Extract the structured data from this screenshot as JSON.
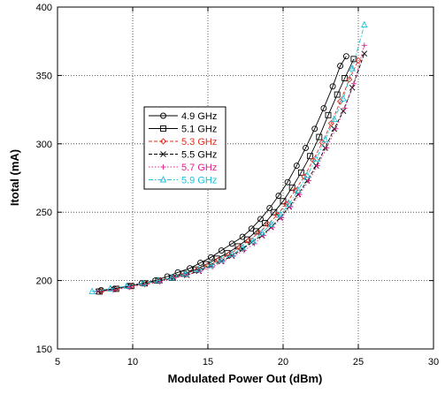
{
  "chart_data": {
    "type": "line",
    "title": "",
    "xlabel": "Modulated Power Out (dBm)",
    "ylabel": "Itotal (mA)",
    "xlim": [
      5,
      30
    ],
    "ylim": [
      150,
      400
    ],
    "xticks": [
      5,
      10,
      15,
      20,
      25,
      30
    ],
    "yticks": [
      150,
      200,
      250,
      300,
      350,
      400
    ],
    "xtick_labels": [
      "5",
      "10",
      "15",
      "20",
      "25",
      "30"
    ],
    "ytick_labels": [
      "150",
      "200",
      "250",
      "300",
      "350",
      "400"
    ],
    "grid": true,
    "legend_position": "center-left",
    "series": [
      {
        "name": "4.9 GHz",
        "color": "#000000",
        "marker": "circle",
        "dash": "solid",
        "points": [
          [
            7.9,
            193
          ],
          [
            8.8,
            194
          ],
          [
            9.7,
            196
          ],
          [
            10.6,
            198
          ],
          [
            11.5,
            200
          ],
          [
            12.3,
            203
          ],
          [
            13.0,
            206
          ],
          [
            13.8,
            209
          ],
          [
            14.5,
            213
          ],
          [
            15.2,
            217
          ],
          [
            15.9,
            222
          ],
          [
            16.6,
            227
          ],
          [
            17.3,
            232
          ],
          [
            17.9,
            238
          ],
          [
            18.5,
            245
          ],
          [
            19.1,
            253
          ],
          [
            19.7,
            262
          ],
          [
            20.3,
            272
          ],
          [
            20.9,
            284
          ],
          [
            21.5,
            297
          ],
          [
            22.1,
            311
          ],
          [
            22.7,
            326
          ],
          [
            23.3,
            342
          ],
          [
            23.8,
            357
          ],
          [
            24.2,
            364
          ]
        ]
      },
      {
        "name": "5.1 GHz",
        "color": "#000000",
        "marker": "square",
        "dash": "solid",
        "points": [
          [
            7.8,
            192
          ],
          [
            8.9,
            194
          ],
          [
            9.9,
            196
          ],
          [
            10.8,
            198
          ],
          [
            11.7,
            200
          ],
          [
            12.6,
            202
          ],
          [
            13.4,
            205
          ],
          [
            14.2,
            208
          ],
          [
            14.9,
            212
          ],
          [
            15.6,
            216
          ],
          [
            16.3,
            220
          ],
          [
            17.0,
            225
          ],
          [
            17.6,
            230
          ],
          [
            18.2,
            236
          ],
          [
            18.8,
            242
          ],
          [
            19.4,
            250
          ],
          [
            20.0,
            258
          ],
          [
            20.6,
            268
          ],
          [
            21.2,
            279
          ],
          [
            21.8,
            291
          ],
          [
            22.4,
            305
          ],
          [
            23.0,
            321
          ],
          [
            23.6,
            336
          ],
          [
            24.1,
            348
          ],
          [
            24.7,
            362
          ]
        ]
      },
      {
        "name": "5.3 GHz",
        "color": "#e03020",
        "marker": "diamond",
        "dash": "dash",
        "points": [
          [
            7.9,
            192
          ],
          [
            8.9,
            194
          ],
          [
            9.9,
            196
          ],
          [
            10.9,
            198
          ],
          [
            11.8,
            200
          ],
          [
            12.7,
            202
          ],
          [
            13.5,
            205
          ],
          [
            14.3,
            208
          ],
          [
            15.0,
            211
          ],
          [
            15.7,
            215
          ],
          [
            16.4,
            219
          ],
          [
            17.1,
            224
          ],
          [
            17.7,
            229
          ],
          [
            18.4,
            235
          ],
          [
            19.0,
            241
          ],
          [
            19.6,
            248
          ],
          [
            20.2,
            256
          ],
          [
            20.8,
            266
          ],
          [
            21.4,
            276
          ],
          [
            22.0,
            288
          ],
          [
            22.6,
            301
          ],
          [
            23.2,
            315
          ],
          [
            23.8,
            331
          ],
          [
            24.4,
            347
          ],
          [
            25.0,
            361
          ]
        ]
      },
      {
        "name": "5.5 GHz",
        "color": "#000000",
        "marker": "x",
        "dash": "dash",
        "points": [
          [
            7.7,
            192
          ],
          [
            8.7,
            194
          ],
          [
            9.8,
            196
          ],
          [
            10.8,
            198
          ],
          [
            11.8,
            200
          ],
          [
            12.7,
            202
          ],
          [
            13.6,
            204
          ],
          [
            14.4,
            207
          ],
          [
            15.2,
            211
          ],
          [
            15.9,
            214
          ],
          [
            16.6,
            218
          ],
          [
            17.3,
            223
          ],
          [
            17.9,
            228
          ],
          [
            18.6,
            233
          ],
          [
            19.2,
            239
          ],
          [
            19.8,
            246
          ],
          [
            20.4,
            254
          ],
          [
            21.0,
            263
          ],
          [
            21.6,
            273
          ],
          [
            22.2,
            284
          ],
          [
            22.8,
            297
          ],
          [
            23.4,
            311
          ],
          [
            24.0,
            324
          ],
          [
            24.6,
            341
          ],
          [
            25.4,
            366
          ]
        ]
      },
      {
        "name": "5.7 GHz",
        "color": "#e0208a",
        "marker": "plus",
        "dash": "dot",
        "points": [
          [
            7.6,
            192
          ],
          [
            8.7,
            193
          ],
          [
            9.8,
            195
          ],
          [
            10.8,
            197
          ],
          [
            11.8,
            199
          ],
          [
            12.7,
            202
          ],
          [
            13.6,
            204
          ],
          [
            14.5,
            207
          ],
          [
            15.3,
            210
          ],
          [
            16.0,
            214
          ],
          [
            16.7,
            218
          ],
          [
            17.4,
            222
          ],
          [
            18.1,
            227
          ],
          [
            18.7,
            233
          ],
          [
            19.3,
            239
          ],
          [
            19.9,
            246
          ],
          [
            20.5,
            254
          ],
          [
            21.1,
            263
          ],
          [
            21.7,
            273
          ],
          [
            22.3,
            284
          ],
          [
            22.9,
            297
          ],
          [
            23.5,
            311
          ],
          [
            24.1,
            326
          ],
          [
            24.7,
            344
          ],
          [
            25.4,
            372
          ]
        ]
      },
      {
        "name": "5.9 GHz",
        "color": "#20c0d8",
        "marker": "triangle",
        "dash": "dashdot",
        "points": [
          [
            7.3,
            192
          ],
          [
            8.5,
            194
          ],
          [
            9.6,
            196
          ],
          [
            10.7,
            198
          ],
          [
            11.7,
            200
          ],
          [
            12.6,
            202
          ],
          [
            13.5,
            205
          ],
          [
            14.4,
            208
          ],
          [
            15.2,
            211
          ],
          [
            15.9,
            215
          ],
          [
            16.6,
            219
          ],
          [
            17.3,
            224
          ],
          [
            18.0,
            229
          ],
          [
            18.6,
            235
          ],
          [
            19.2,
            241
          ],
          [
            19.8,
            248
          ],
          [
            20.4,
            256
          ],
          [
            21.0,
            266
          ],
          [
            21.6,
            277
          ],
          [
            22.2,
            289
          ],
          [
            22.8,
            303
          ],
          [
            23.4,
            318
          ],
          [
            24.0,
            333
          ],
          [
            24.6,
            355
          ],
          [
            25.4,
            387
          ]
        ]
      }
    ]
  }
}
